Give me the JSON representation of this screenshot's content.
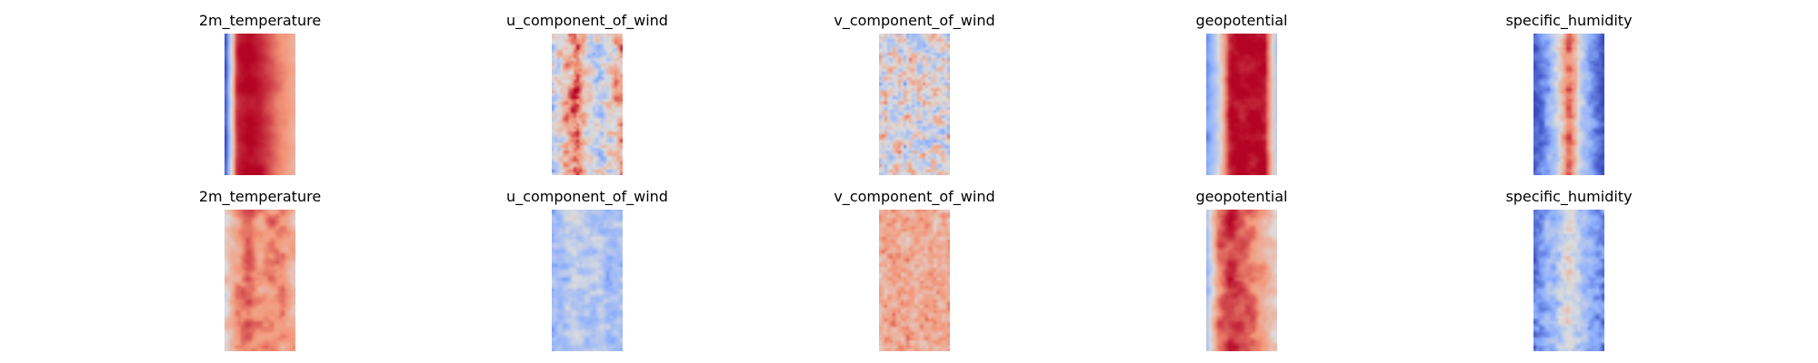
{
  "chart_data": {
    "type": "heatmap",
    "colormap": "coolwarm",
    "rows": [
      {
        "panels": [
          {
            "title": "2m_temperature",
            "pattern": {
              "profile": [
                -0.9,
                0.9,
                1.0,
                0.9,
                0.75,
                0.55,
                0.35
              ],
              "noise": 0.15,
              "freq": 0.08
            }
          },
          {
            "title": "u_component_of_wind",
            "pattern": {
              "profile": [
                -0.1,
                0.3,
                0.7,
                0.05,
                -0.2,
                0.1,
                0.4
              ],
              "noise": 0.75,
              "freq": 0.22
            }
          },
          {
            "title": "v_component_of_wind",
            "pattern": {
              "profile": [
                0.0,
                0.0,
                0.0,
                0.0,
                0.0,
                0.0,
                0.0
              ],
              "noise": 0.85,
              "freq": 0.28
            }
          },
          {
            "title": "geopotential",
            "pattern": {
              "profile": [
                -0.6,
                -0.1,
                1.0,
                0.95,
                0.95,
                1.0,
                -0.2
              ],
              "noise": 0.2,
              "freq": 0.12
            }
          },
          {
            "title": "specific_humidity",
            "pattern": {
              "profile": [
                -0.95,
                -0.6,
                -0.1,
                0.75,
                -0.1,
                -0.6,
                -0.95
              ],
              "noise": 0.35,
              "freq": 0.2
            }
          }
        ]
      },
      {
        "panels": [
          {
            "title": "2m_temperature",
            "pattern": {
              "profile": [
                0.1,
                0.5,
                0.6,
                0.45,
                0.55,
                0.5,
                0.3
              ],
              "noise": 0.35,
              "freq": 0.12
            }
          },
          {
            "title": "u_component_of_wind",
            "pattern": {
              "profile": [
                -0.35,
                -0.3,
                -0.15,
                -0.3,
                -0.25,
                -0.35,
                -0.3
              ],
              "noise": 0.4,
              "freq": 0.2
            }
          },
          {
            "title": "v_component_of_wind",
            "pattern": {
              "profile": [
                0.35,
                0.4,
                0.4,
                0.35,
                0.4,
                0.35,
                0.4
              ],
              "noise": 0.4,
              "freq": 0.3
            }
          },
          {
            "title": "geopotential",
            "pattern": {
              "profile": [
                -0.3,
                0.6,
                0.85,
                0.75,
                0.6,
                0.4,
                0.1
              ],
              "noise": 0.3,
              "freq": 0.12
            }
          },
          {
            "title": "specific_humidity",
            "pattern": {
              "profile": [
                -0.7,
                -0.5,
                -0.3,
                0.1,
                -0.3,
                -0.5,
                -0.7
              ],
              "noise": 0.4,
              "freq": 0.22
            }
          }
        ]
      }
    ]
  }
}
